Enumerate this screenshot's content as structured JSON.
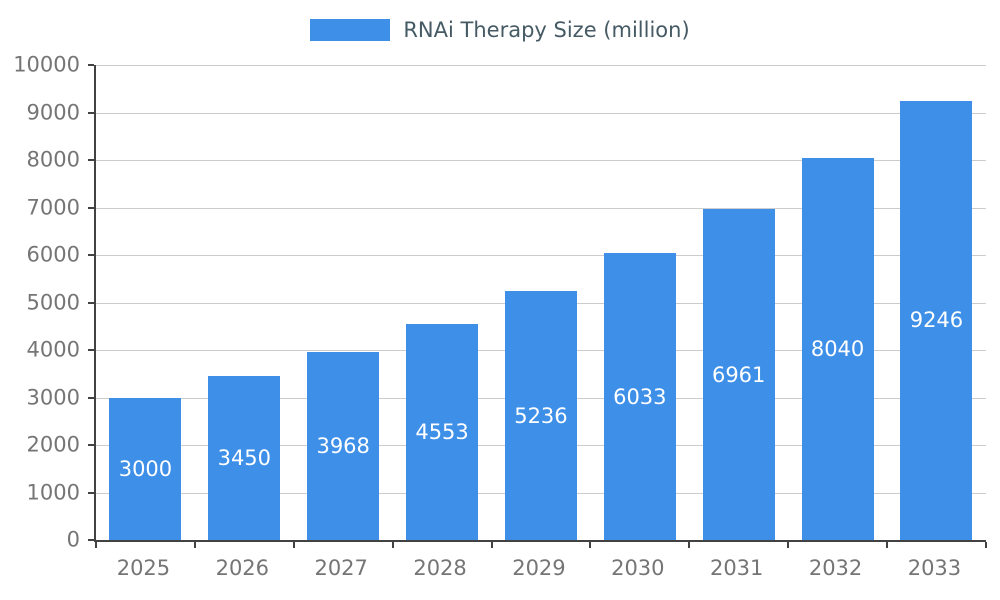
{
  "legend": {
    "label": "RNAi Therapy Size (million)"
  },
  "colors": {
    "bar": "#3D8FE8",
    "grid": "#cccccc",
    "axis": "#424242",
    "tick_label": "#757575",
    "legend_text": "#455A64",
    "bar_label": "#ffffff",
    "background": "#ffffff"
  },
  "chart_data": {
    "type": "bar",
    "title": "RNAi Therapy Size (million)",
    "categories": [
      "2025",
      "2026",
      "2027",
      "2028",
      "2029",
      "2030",
      "2031",
      "2032",
      "2033"
    ],
    "values": [
      3000,
      3450,
      3968,
      4553,
      5236,
      6033,
      6961,
      8040,
      9246
    ],
    "xlabel": "",
    "ylabel": "",
    "ylim": [
      0,
      10000
    ],
    "ytick_step": 1000,
    "ytick_labels": [
      "0",
      "1000",
      "2000",
      "3000",
      "4000",
      "5000",
      "6000",
      "7000",
      "8000",
      "9000",
      "10000"
    ],
    "grid": true,
    "legend_position": "top",
    "value_label_position": "inside-center"
  }
}
